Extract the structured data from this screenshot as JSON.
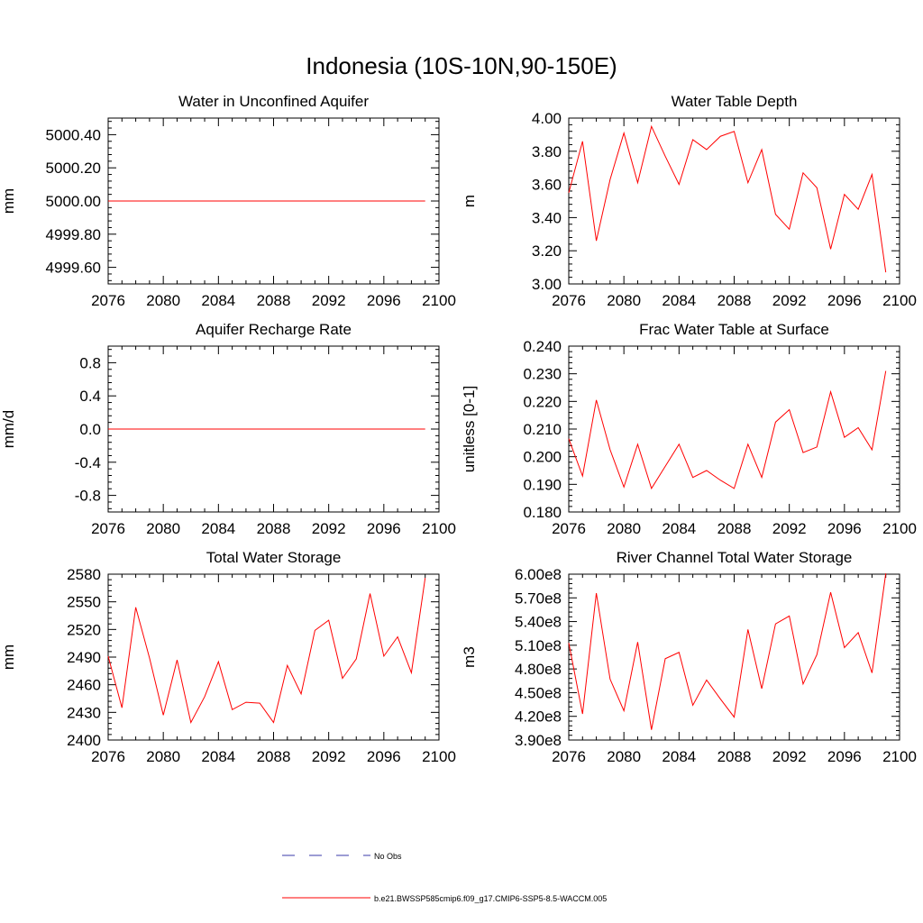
{
  "title": "Indonesia (10S-10N,90-150E)",
  "colors": {
    "series": "#ff0000",
    "obs": "#3a3aa8",
    "axis": "#000000"
  },
  "legend": {
    "obs_label": "No Obs",
    "model_label": "b.e21.BWSSP585cmip6.f09_g17.CMIP6-SSP5-8.5-WACCM.005"
  },
  "chart_data": [
    {
      "type": "line",
      "title": "Water in Unconfined Aquifer",
      "ylabel": "mm",
      "xlabel": "",
      "xlim": [
        2076,
        2100
      ],
      "ylim": [
        4999.5,
        5000.5
      ],
      "xticks": [
        2076,
        2080,
        2084,
        2088,
        2092,
        2096,
        2100
      ],
      "xtick_labels": [
        "2076",
        "2080",
        "2084",
        "2088",
        "2092",
        "2096",
        "2100"
      ],
      "yticks": [
        4999.6,
        4999.8,
        5000.0,
        5000.2,
        5000.4
      ],
      "ytick_labels": [
        "4999.60",
        "4999.80",
        "5000.00",
        "5000.20",
        "5000.40"
      ],
      "x": [
        2076,
        2077,
        2078,
        2079,
        2080,
        2081,
        2082,
        2083,
        2084,
        2085,
        2086,
        2087,
        2088,
        2089,
        2090,
        2091,
        2092,
        2093,
        2094,
        2095,
        2096,
        2097,
        2098,
        2099
      ],
      "series": [
        {
          "name": "b.e21.BWSSP585cmip6.f09_g17.CMIP6-SSP5-8.5-WACCM.005",
          "values": [
            5000,
            5000,
            5000,
            5000,
            5000,
            5000,
            5000,
            5000,
            5000,
            5000,
            5000,
            5000,
            5000,
            5000,
            5000,
            5000,
            5000,
            5000,
            5000,
            5000,
            5000,
            5000,
            5000,
            5000
          ]
        }
      ]
    },
    {
      "type": "line",
      "title": "Water Table Depth",
      "ylabel": "m",
      "xlabel": "",
      "xlim": [
        2076,
        2100
      ],
      "ylim": [
        3.0,
        4.0
      ],
      "xticks": [
        2076,
        2080,
        2084,
        2088,
        2092,
        2096,
        2100
      ],
      "xtick_labels": [
        "2076",
        "2080",
        "2084",
        "2088",
        "2092",
        "2096",
        "2100"
      ],
      "yticks": [
        3.0,
        3.2,
        3.4,
        3.6,
        3.8,
        4.0
      ],
      "ytick_labels": [
        "3.00",
        "3.20",
        "3.40",
        "3.60",
        "3.80",
        "4.00"
      ],
      "x": [
        2076,
        2077,
        2078,
        2079,
        2080,
        2081,
        2082,
        2083,
        2084,
        2085,
        2086,
        2087,
        2088,
        2089,
        2090,
        2091,
        2092,
        2093,
        2094,
        2095,
        2096,
        2097,
        2098,
        2099
      ],
      "series": [
        {
          "name": "b.e21.BWSSP585cmip6.f09_g17.CMIP6-SSP5-8.5-WACCM.005",
          "values": [
            3.55,
            3.86,
            3.26,
            3.63,
            3.91,
            3.61,
            3.95,
            3.77,
            3.6,
            3.87,
            3.81,
            3.89,
            3.92,
            3.61,
            3.81,
            3.42,
            3.33,
            3.67,
            3.58,
            3.21,
            3.54,
            3.45,
            3.66,
            3.07
          ]
        }
      ]
    },
    {
      "type": "line",
      "title": "Aquifer Recharge Rate",
      "ylabel": "mm/d",
      "xlabel": "",
      "xlim": [
        2076,
        2100
      ],
      "ylim": [
        -1.0,
        1.0
      ],
      "xticks": [
        2076,
        2080,
        2084,
        2088,
        2092,
        2096,
        2100
      ],
      "xtick_labels": [
        "2076",
        "2080",
        "2084",
        "2088",
        "2092",
        "2096",
        "2100"
      ],
      "yticks": [
        -0.8,
        -0.4,
        0.0,
        0.4,
        0.8
      ],
      "ytick_labels": [
        "-0.8",
        "-0.4",
        "0.0",
        "0.4",
        "0.8"
      ],
      "x": [
        2076,
        2077,
        2078,
        2079,
        2080,
        2081,
        2082,
        2083,
        2084,
        2085,
        2086,
        2087,
        2088,
        2089,
        2090,
        2091,
        2092,
        2093,
        2094,
        2095,
        2096,
        2097,
        2098,
        2099
      ],
      "series": [
        {
          "name": "b.e21.BWSSP585cmip6.f09_g17.CMIP6-SSP5-8.5-WACCM.005",
          "values": [
            0,
            0,
            0,
            0,
            0,
            0,
            0,
            0,
            0,
            0,
            0,
            0,
            0,
            0,
            0,
            0,
            0,
            0,
            0,
            0,
            0,
            0,
            0,
            0
          ]
        }
      ]
    },
    {
      "type": "line",
      "title": "Frac Water Table at Surface",
      "ylabel": "unitless [0-1]",
      "xlabel": "",
      "xlim": [
        2076,
        2100
      ],
      "ylim": [
        0.18,
        0.24
      ],
      "xticks": [
        2076,
        2080,
        2084,
        2088,
        2092,
        2096,
        2100
      ],
      "xtick_labels": [
        "2076",
        "2080",
        "2084",
        "2088",
        "2092",
        "2096",
        "2100"
      ],
      "yticks": [
        0.18,
        0.19,
        0.2,
        0.21,
        0.22,
        0.23,
        0.24
      ],
      "ytick_labels": [
        "0.180",
        "0.190",
        "0.200",
        "0.210",
        "0.220",
        "0.230",
        "0.240"
      ],
      "x": [
        2076,
        2077,
        2078,
        2079,
        2080,
        2081,
        2082,
        2083,
        2084,
        2085,
        2086,
        2087,
        2088,
        2089,
        2090,
        2091,
        2092,
        2093,
        2094,
        2095,
        2096,
        2097,
        2098,
        2099
      ],
      "series": [
        {
          "name": "b.e21.BWSSP585cmip6.f09_g17.CMIP6-SSP5-8.5-WACCM.005",
          "values": [
            0.2065,
            0.193,
            0.2205,
            0.2025,
            0.189,
            0.2045,
            0.1885,
            0.1965,
            0.2045,
            0.1925,
            0.195,
            0.1915,
            0.1885,
            0.2045,
            0.1925,
            0.2125,
            0.217,
            0.2015,
            0.2035,
            0.2235,
            0.207,
            0.2105,
            0.2025,
            0.231
          ]
        }
      ]
    },
    {
      "type": "line",
      "title": "Total Water Storage",
      "ylabel": "mm",
      "xlabel": "",
      "xlim": [
        2076,
        2100
      ],
      "ylim": [
        2400,
        2580
      ],
      "xticks": [
        2076,
        2080,
        2084,
        2088,
        2092,
        2096,
        2100
      ],
      "xtick_labels": [
        "2076",
        "2080",
        "2084",
        "2088",
        "2092",
        "2096",
        "2100"
      ],
      "yticks": [
        2400,
        2430,
        2460,
        2490,
        2520,
        2550,
        2580
      ],
      "ytick_labels": [
        "2400",
        "2430",
        "2460",
        "2490",
        "2520",
        "2550",
        "2580"
      ],
      "x": [
        2076,
        2077,
        2078,
        2079,
        2080,
        2081,
        2082,
        2083,
        2084,
        2085,
        2086,
        2087,
        2088,
        2089,
        2090,
        2091,
        2092,
        2093,
        2094,
        2095,
        2096,
        2097,
        2098,
        2099
      ],
      "series": [
        {
          "name": "b.e21.BWSSP585cmip6.f09_g17.CMIP6-SSP5-8.5-WACCM.005",
          "values": [
            2491,
            2435,
            2544,
            2489,
            2427,
            2487,
            2419,
            2447,
            2485,
            2433,
            2441,
            2440,
            2419,
            2481,
            2450,
            2519,
            2530,
            2467,
            2488,
            2559,
            2491,
            2512,
            2473,
            2576
          ]
        }
      ]
    },
    {
      "type": "line",
      "title": "River Channel Total Water Storage",
      "ylabel": "m3",
      "xlabel": "",
      "xlim": [
        2076,
        2100
      ],
      "ylim": [
        390000000,
        600000000
      ],
      "xticks": [
        2076,
        2080,
        2084,
        2088,
        2092,
        2096,
        2100
      ],
      "xtick_labels": [
        "2076",
        "2080",
        "2084",
        "2088",
        "2092",
        "2096",
        "2100"
      ],
      "yticks": [
        390000000,
        420000000,
        450000000,
        480000000,
        510000000,
        540000000,
        570000000,
        600000000
      ],
      "ytick_labels": [
        "3.90e8",
        "4.20e8",
        "4.50e8",
        "4.80e8",
        "5.10e8",
        "5.40e8",
        "5.70e8",
        "6.00e8"
      ],
      "x": [
        2076,
        2077,
        2078,
        2079,
        2080,
        2081,
        2082,
        2083,
        2084,
        2085,
        2086,
        2087,
        2088,
        2089,
        2090,
        2091,
        2092,
        2093,
        2094,
        2095,
        2096,
        2097,
        2098,
        2099
      ],
      "series": [
        {
          "name": "b.e21.BWSSP585cmip6.f09_g17.CMIP6-SSP5-8.5-WACCM.005",
          "values": [
            513000000,
            423000000,
            576000000,
            467000000,
            427000000,
            514000000,
            403000000,
            493000000,
            501000000,
            434000000,
            466000000,
            442000000,
            419000000,
            530000000,
            455000000,
            537000000,
            547000000,
            461000000,
            498000000,
            577000000,
            507000000,
            526000000,
            475000000,
            601000000
          ]
        }
      ]
    }
  ]
}
